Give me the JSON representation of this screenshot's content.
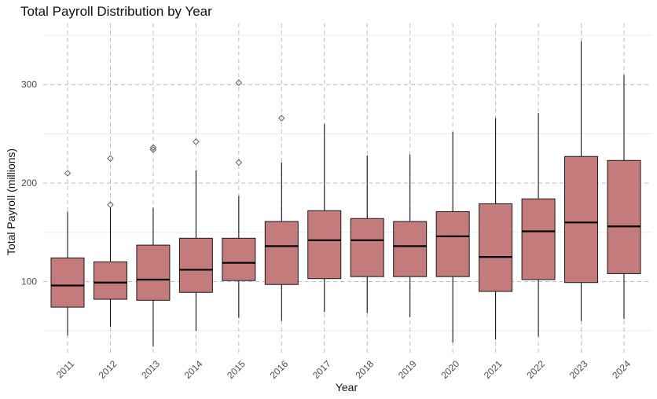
{
  "chart_data": {
    "type": "box",
    "title": "Total Payroll Distribution by Year",
    "xlabel": "Year",
    "ylabel": "Total Payroll (millions)",
    "categories": [
      "2011",
      "2012",
      "2013",
      "2014",
      "2015",
      "2016",
      "2017",
      "2018",
      "2019",
      "2020",
      "2021",
      "2022",
      "2023",
      "2024"
    ],
    "yticks": [
      100,
      200,
      300
    ],
    "ylim": [
      27,
      362
    ],
    "grid": "dashed",
    "colors": {
      "box_fill": "#c47b7b",
      "box_stroke": "#1a1a1a",
      "median": "#000000",
      "grid_major": "#bdbdbd",
      "grid_minor": "#ebebeb"
    },
    "boxes": [
      {
        "year": "2011",
        "whisker_low": 45,
        "q1": 74,
        "median": 96,
        "q3": 124,
        "whisker_high": 171,
        "outliers": [
          210
        ]
      },
      {
        "year": "2012",
        "whisker_low": 54,
        "q1": 82,
        "median": 99,
        "q3": 120,
        "whisker_high": 175,
        "outliers": [
          178,
          225
        ]
      },
      {
        "year": "2013",
        "whisker_low": 34,
        "q1": 81,
        "median": 102,
        "q3": 137,
        "whisker_high": 175,
        "outliers": [
          234,
          236
        ]
      },
      {
        "year": "2014",
        "whisker_low": 50,
        "q1": 89,
        "median": 112,
        "q3": 144,
        "whisker_high": 213,
        "outliers": [
          242
        ]
      },
      {
        "year": "2015",
        "whisker_low": 63,
        "q1": 101,
        "median": 119,
        "q3": 144,
        "whisker_high": 187,
        "outliers": [
          221,
          302
        ]
      },
      {
        "year": "2016",
        "whisker_low": 60,
        "q1": 97,
        "median": 136,
        "q3": 161,
        "whisker_high": 221,
        "outliers": [
          266
        ]
      },
      {
        "year": "2017",
        "whisker_low": 69,
        "q1": 103,
        "median": 142,
        "q3": 172,
        "whisker_high": 260,
        "outliers": []
      },
      {
        "year": "2018",
        "whisker_low": 68,
        "q1": 105,
        "median": 142,
        "q3": 164,
        "whisker_high": 228,
        "outliers": []
      },
      {
        "year": "2019",
        "whisker_low": 64,
        "q1": 105,
        "median": 136,
        "q3": 161,
        "whisker_high": 229,
        "outliers": []
      },
      {
        "year": "2020",
        "whisker_low": 38,
        "q1": 105,
        "median": 146,
        "q3": 171,
        "whisker_high": 252,
        "outliers": []
      },
      {
        "year": "2021",
        "whisker_low": 41,
        "q1": 90,
        "median": 125,
        "q3": 179,
        "whisker_high": 266,
        "outliers": []
      },
      {
        "year": "2022",
        "whisker_low": 44,
        "q1": 102,
        "median": 151,
        "q3": 184,
        "whisker_high": 271,
        "outliers": []
      },
      {
        "year": "2023",
        "whisker_low": 60,
        "q1": 99,
        "median": 160,
        "q3": 227,
        "whisker_high": 344,
        "outliers": []
      },
      {
        "year": "2024",
        "whisker_low": 62,
        "q1": 108,
        "median": 156,
        "q3": 223,
        "whisker_high": 310,
        "outliers": []
      }
    ]
  }
}
